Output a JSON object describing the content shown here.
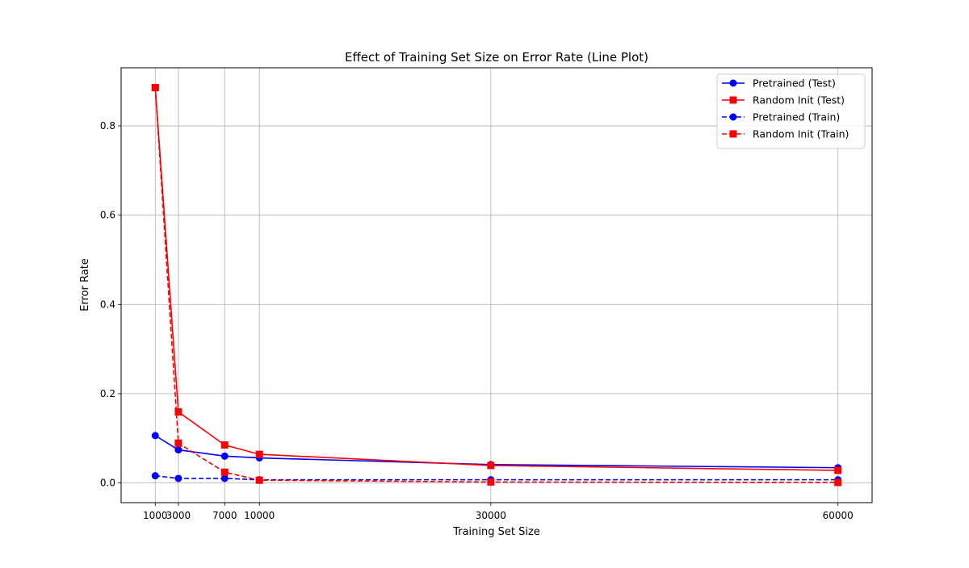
{
  "chart_data": {
    "type": "line",
    "title": "Effect of Training Set Size on Error Rate (Line Plot)",
    "xlabel": "Training Set Size",
    "ylabel": "Error Rate",
    "x": [
      1000,
      3000,
      7000,
      10000,
      30000,
      60000
    ],
    "xticks": [
      "1000",
      "3000",
      "7000",
      "10000",
      "30000",
      "60000"
    ],
    "yticks": [
      "0.0",
      "0.2",
      "0.4",
      "0.6",
      "0.8"
    ],
    "xlim": [
      -1950,
      62950
    ],
    "ylim": [
      -0.0443,
      0.9303
    ],
    "grid": true,
    "legend_position": "top-right",
    "series": [
      {
        "name": "Pretrained (Test)",
        "color": "#0000ff",
        "linestyle": "solid",
        "marker": "circle",
        "values": [
          0.106,
          0.074,
          0.06,
          0.056,
          0.041,
          0.034
        ]
      },
      {
        "name": "Random Init (Test)",
        "color": "#ff0000",
        "linestyle": "solid",
        "marker": "square",
        "values": [
          0.886,
          0.159,
          0.085,
          0.064,
          0.039,
          0.028
        ]
      },
      {
        "name": "Pretrained (Train)",
        "color": "#0000ff",
        "linestyle": "dashed",
        "marker": "circle",
        "values": [
          0.016,
          0.01,
          0.01,
          0.007,
          0.007,
          0.007
        ]
      },
      {
        "name": "Random Init (Train)",
        "color": "#ff0000",
        "linestyle": "dashed",
        "marker": "square",
        "values": [
          0.886,
          0.089,
          0.024,
          0.006,
          0.002,
          0.001
        ]
      }
    ]
  }
}
